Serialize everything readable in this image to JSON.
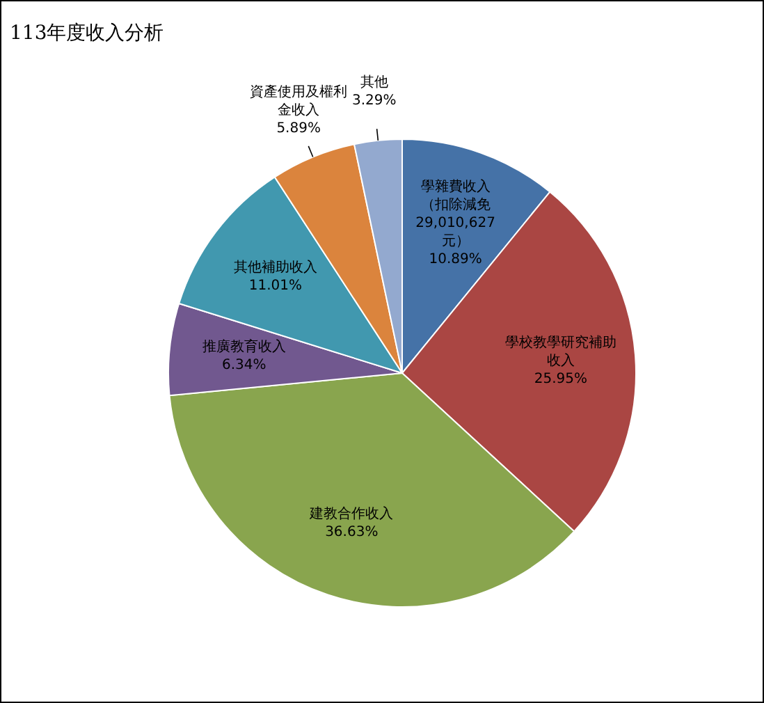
{
  "chart_data": {
    "type": "pie",
    "title": "113年度收入分析",
    "categories": [
      "學雜費收入（扣除減免29,010,627元）",
      "學校教學研究補助收入",
      "建教合作收入",
      "推廣教育收入",
      "其他補助收入",
      "資產使用及權利金收入",
      "其他"
    ],
    "values": [
      10.89,
      25.95,
      36.63,
      6.34,
      11.01,
      5.89,
      3.29
    ],
    "colors": [
      "#4572a7",
      "#aa4643",
      "#89a54e",
      "#71588f",
      "#4198af",
      "#db843d",
      "#93a9cf"
    ],
    "value_labels": [
      "10.89%",
      "25.95%",
      "36.63%",
      "6.34%",
      "11.01%",
      "5.89%",
      "3.29%"
    ],
    "legend": false
  }
}
